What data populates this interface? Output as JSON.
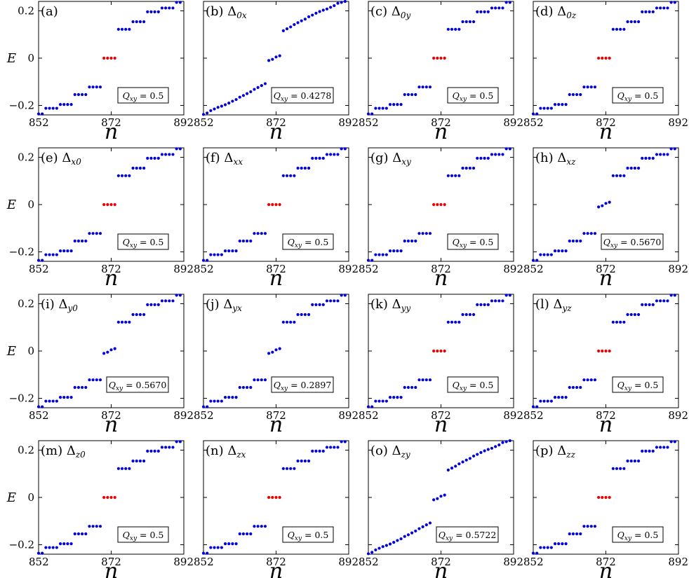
{
  "colors": {
    "trivial": "#0000dd",
    "zero_modes": "#ee0000",
    "axes": "#000000"
  },
  "chart_data": {
    "type": "scatter",
    "layout": "4x4 grid of panels",
    "xlabel": "n",
    "ylabel": "E",
    "xlim": [
      852,
      892
    ],
    "ylim": [
      -0.24,
      0.24
    ],
    "xticks": [
      "852",
      "872",
      "892"
    ],
    "yticks": [
      "-0.2",
      "0",
      "0.2"
    ],
    "profiles": {
      "step": [
        -0.236,
        -0.236,
        -0.212,
        -0.212,
        -0.212,
        -0.212,
        -0.196,
        -0.196,
        -0.196,
        -0.196,
        -0.154,
        -0.154,
        -0.154,
        -0.154,
        -0.122,
        -0.122,
        -0.122,
        -0.122,
        0,
        0,
        0,
        0,
        0.122,
        0.122,
        0.122,
        0.122,
        0.154,
        0.154,
        0.154,
        0.154,
        0.196,
        0.196,
        0.196,
        0.196,
        0.212,
        0.212,
        0.212,
        0.212,
        0.236,
        0.236
      ],
      "split": [
        -0.236,
        -0.236,
        -0.212,
        -0.212,
        -0.212,
        -0.212,
        -0.196,
        -0.196,
        -0.196,
        -0.196,
        -0.154,
        -0.154,
        -0.154,
        -0.154,
        -0.122,
        -0.122,
        -0.122,
        -0.122,
        -0.01,
        -0.005,
        0.005,
        0.01,
        0.122,
        0.122,
        0.122,
        0.122,
        0.154,
        0.154,
        0.154,
        0.154,
        0.196,
        0.196,
        0.196,
        0.196,
        0.212,
        0.212,
        0.212,
        0.212,
        0.236,
        0.236
      ],
      "spread": [
        -0.238,
        -0.232,
        -0.222,
        -0.215,
        -0.208,
        -0.203,
        -0.197,
        -0.19,
        -0.182,
        -0.175,
        -0.165,
        -0.158,
        -0.15,
        -0.142,
        -0.132,
        -0.124,
        -0.116,
        -0.108,
        -0.01,
        -0.005,
        0.005,
        0.01,
        0.116,
        0.124,
        0.132,
        0.142,
        0.15,
        0.158,
        0.165,
        0.175,
        0.182,
        0.19,
        0.197,
        0.203,
        0.208,
        0.215,
        0.222,
        0.232,
        0.236,
        0.24
      ]
    },
    "panels": [
      {
        "label": "(a)",
        "sym": "",
        "sub": "",
        "q": "0.5",
        "profile": "step",
        "box": "bottom"
      },
      {
        "label": "(b)",
        "sym": "Δ",
        "sub": "0x",
        "q": "0.4278",
        "profile": "spread",
        "box": "bottom"
      },
      {
        "label": "(c)",
        "sym": "Δ",
        "sub": "0y",
        "q": "0.5",
        "profile": "step",
        "box": "bottom"
      },
      {
        "label": "(d)",
        "sym": "Δ",
        "sub": "0z",
        "q": "0.5",
        "profile": "step",
        "box": "bottom"
      },
      {
        "label": "(e)",
        "sym": "Δ",
        "sub": "x0",
        "q": "0.5",
        "profile": "step",
        "box": "bottom"
      },
      {
        "label": "(f)",
        "sym": "Δ",
        "sub": "xx",
        "q": "0.5",
        "profile": "step",
        "box": "bottom"
      },
      {
        "label": "(g)",
        "sym": "Δ",
        "sub": "xy",
        "q": "0.5",
        "profile": "step",
        "box": "bottom"
      },
      {
        "label": "(h)",
        "sym": "Δ",
        "sub": "xz",
        "q": "0.5670",
        "profile": "split",
        "box": "bottom"
      },
      {
        "label": "(i)",
        "sym": "Δ",
        "sub": "y0",
        "q": "0.5670",
        "profile": "split",
        "box": "middle"
      },
      {
        "label": "(j)",
        "sym": "Δ",
        "sub": "yx",
        "q": "0.2897",
        "profile": "split",
        "box": "middle"
      },
      {
        "label": "(k)",
        "sym": "Δ",
        "sub": "yy",
        "q": "0.5",
        "profile": "step",
        "box": "middle"
      },
      {
        "label": "(l)",
        "sym": "Δ",
        "sub": "yz",
        "q": "0.5",
        "profile": "step",
        "box": "middle"
      },
      {
        "label": "(m)",
        "sym": "Δ",
        "sub": "z0",
        "q": "0.5",
        "profile": "step",
        "box": "bottom"
      },
      {
        "label": "(n)",
        "sym": "Δ",
        "sub": "zx",
        "q": "0.5",
        "profile": "step",
        "box": "bottom"
      },
      {
        "label": "(o)",
        "sym": "Δ",
        "sub": "zy",
        "q": "0.5722",
        "profile": "spread",
        "box": "bottom"
      },
      {
        "label": "(p)",
        "sym": "Δ",
        "sub": "zz",
        "q": "0.5",
        "profile": "step",
        "box": "bottom"
      }
    ],
    "legend_text": {
      "Q": "Q",
      "sub": "xy",
      "eq": " = "
    }
  }
}
